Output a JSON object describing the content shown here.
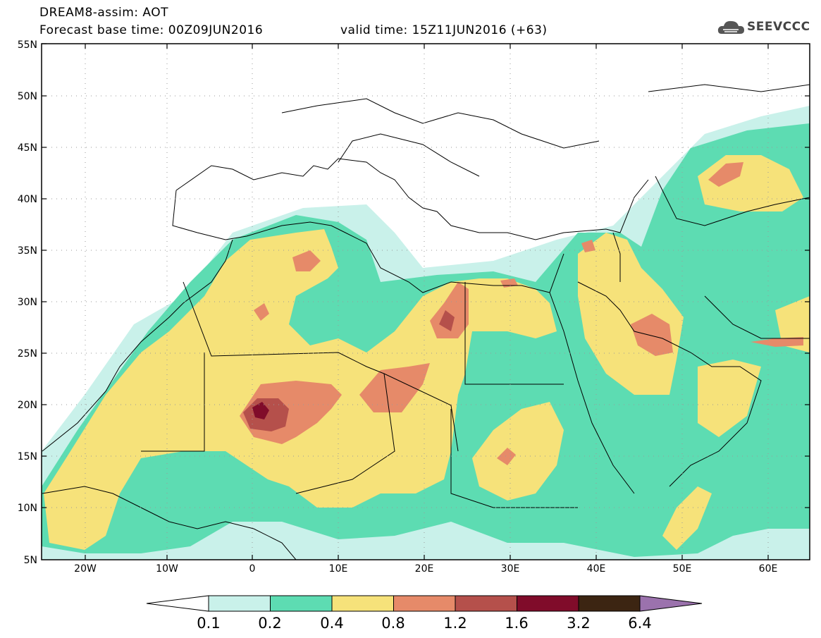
{
  "header": {
    "model_title": "DREAM8-assim: AOT",
    "base_time": "Forecast base time: 00Z09JUN2016",
    "valid_time": "valid time: 15Z11JUN2016 (+63)",
    "logo_text": "SEEVCCC"
  },
  "map": {
    "lat_labels": [
      "55N",
      "50N",
      "45N",
      "40N",
      "35N",
      "30N",
      "25N",
      "20N",
      "15N",
      "10N",
      "5N"
    ],
    "lon_labels": [
      "20W",
      "10W",
      "0",
      "10E",
      "20E",
      "30E",
      "40E",
      "50E",
      "60E"
    ],
    "lat_range": [
      5,
      55
    ],
    "lon_range": [
      -25,
      65
    ]
  },
  "colorbar": {
    "levels": [
      "0.1",
      "0.2",
      "0.4",
      "0.8",
      "1.2",
      "1.6",
      "3.2",
      "6.4"
    ],
    "colors": [
      "#c9f1ea",
      "#5ddcb2",
      "#f6e27a",
      "#e68a69",
      "#b5504b",
      "#800c2a",
      "#3c2512",
      "#9b72ad"
    ],
    "under_color": "#ffffff"
  }
}
